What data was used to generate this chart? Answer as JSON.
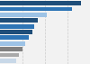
{
  "bars": [
    {
      "value": 10.8,
      "color": "#1f4e79"
    },
    {
      "value": 9.6,
      "color": "#2e75b6"
    },
    {
      "value": 6.3,
      "color": "#9dc3e6"
    },
    {
      "value": 5.1,
      "color": "#1f4e79"
    },
    {
      "value": 4.6,
      "color": "#2e75b6"
    },
    {
      "value": 4.3,
      "color": "#1f4e79"
    },
    {
      "value": 3.9,
      "color": "#2e75b6"
    },
    {
      "value": 3.4,
      "color": "#9dc3e6"
    },
    {
      "value": 3.0,
      "color": "#808080"
    },
    {
      "value": 2.5,
      "color": "#a9a9a9"
    },
    {
      "value": 2.1,
      "color": "#c8d8e8"
    }
  ],
  "xlim": [
    0,
    12
  ],
  "background_color": "#f2f2f2",
  "grid_color": "#cccccc"
}
